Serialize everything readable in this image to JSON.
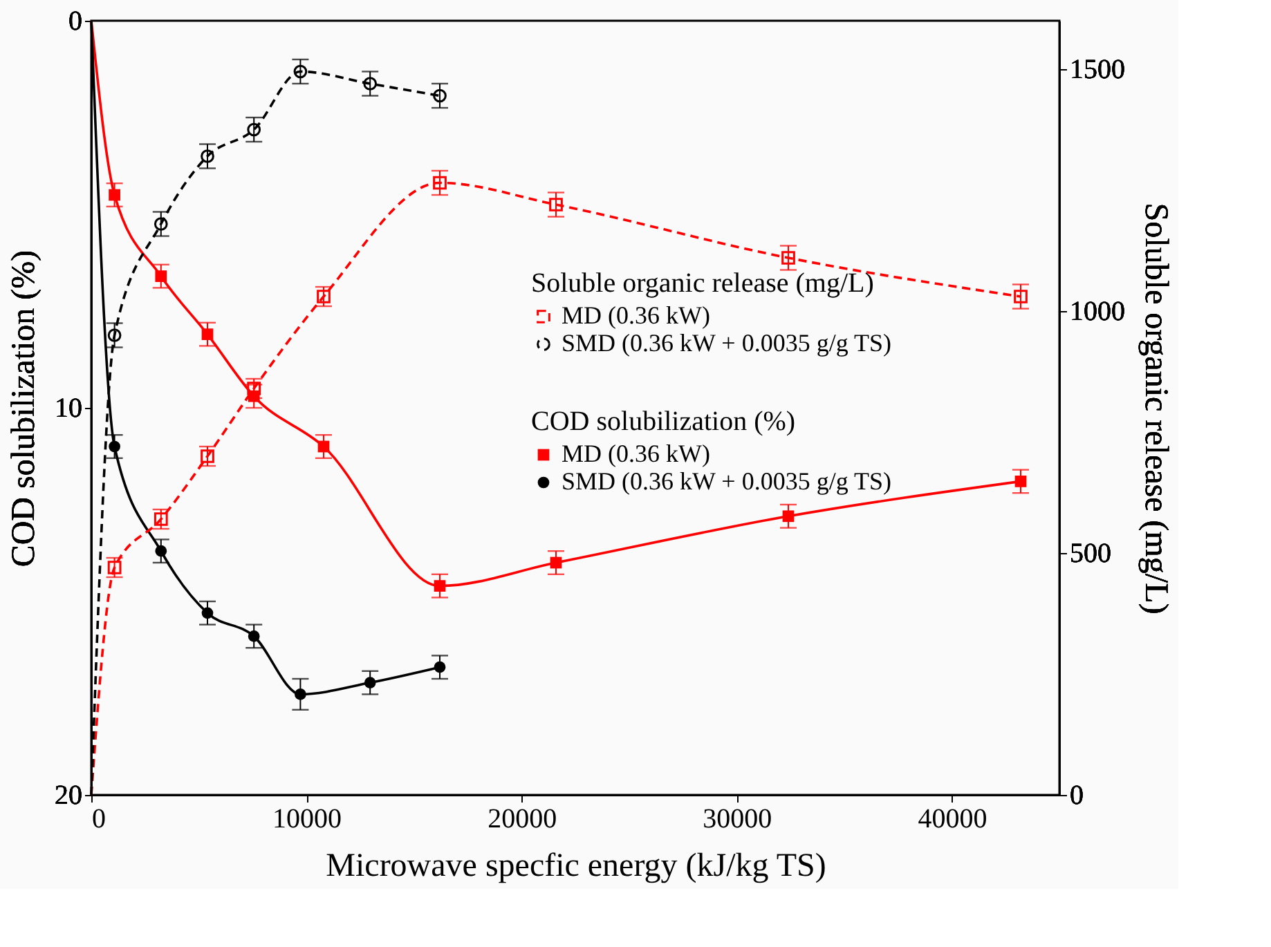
{
  "chart_data": {
    "type": "line",
    "xlabel": "Microwave specfic energy (kJ/kg TS)",
    "ylabel": "COD solubilization (%)",
    "y2label": "Soluble organic release (mg/L)",
    "legend_title": [
      "Soluble organic release (mg/L)",
      "COD solubilization (%)"
    ],
    "xlim": [
      0,
      45000
    ],
    "xticks": [
      0,
      10000,
      20000,
      30000,
      40000
    ],
    "ylim": [
      20,
      0
    ],
    "yticks": [
      0,
      10,
      20
    ],
    "y2lim": [
      0,
      1600
    ],
    "y2ticks": [
      0,
      500,
      1000,
      1500
    ],
    "grid": false,
    "legend": "right",
    "series": [
      {
        "name": "MD    (0.36 kW)",
        "color": "#ff0000",
        "axis": "y2",
        "line_style": "dashed",
        "marker": "square",
        "x": [
          0,
          1080,
          3240,
          5400,
          7560,
          10800,
          16200,
          21600,
          32400,
          43200
        ],
        "values": [
          0,
          470,
          570,
          700,
          840,
          1030,
          1265,
          1220,
          1110,
          1030
        ],
        "errors": [
          null,
          20,
          20,
          20,
          20,
          20,
          25,
          25,
          25,
          25
        ]
      },
      {
        "name": "SMD (0.36 kW + 0.0035 g/g TS)",
        "color": "#000000",
        "axis": "y2",
        "line_style": "dashed",
        "marker": "circle",
        "x": [
          0,
          1080,
          3240,
          5400,
          7560,
          9720,
          12960,
          16200
        ],
        "values": [
          0,
          950,
          1180,
          1320,
          1375,
          1495,
          1470,
          1445
        ],
        "errors": [
          null,
          25,
          25,
          25,
          25,
          25,
          25,
          25
        ]
      },
      {
        "name": "MD    (0.36 kW)",
        "color": "#ff0000",
        "axis": "y",
        "line_style": "solid",
        "marker": "square",
        "x": [
          0,
          1080,
          3240,
          5400,
          7560,
          10800,
          16200,
          21600,
          32400,
          43200
        ],
        "values": [
          0,
          4.5,
          6.6,
          8.1,
          9.7,
          11.0,
          14.6,
          14.0,
          12.8,
          11.9
        ],
        "errors": [
          null,
          0.3,
          0.3,
          0.3,
          0.3,
          0.3,
          0.3,
          0.3,
          0.3,
          0.3
        ]
      },
      {
        "name": "SMD (0.36 kW + 0.0035 g/g TS)",
        "color": "#000000",
        "axis": "y",
        "line_style": "solid",
        "marker": "circle",
        "x": [
          0,
          1080,
          3240,
          5400,
          7560,
          9720,
          12960,
          16200
        ],
        "values": [
          0,
          11.0,
          13.7,
          15.3,
          15.9,
          17.4,
          17.1,
          16.7
        ],
        "errors": [
          null,
          0.3,
          0.3,
          0.3,
          0.3,
          0.4,
          0.3,
          0.3
        ]
      }
    ]
  }
}
